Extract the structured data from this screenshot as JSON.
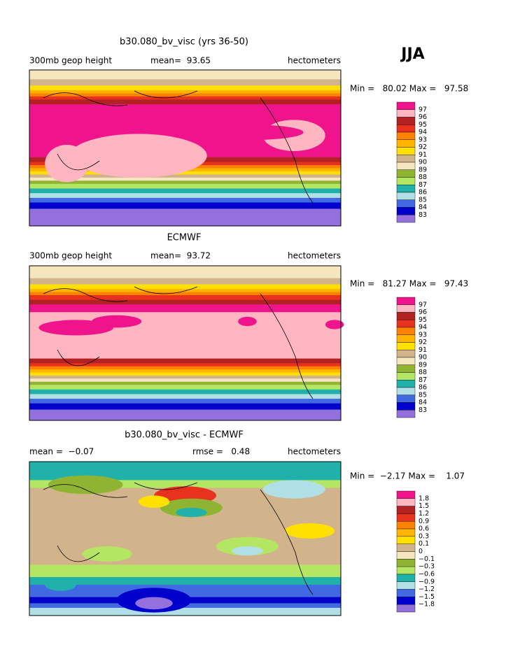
{
  "season": "JJA",
  "colors": [
    "#f0148c",
    "#ffb6c1",
    "#b22222",
    "#e8321e",
    "#ff8200",
    "#ffb400",
    "#ffe000",
    "#d2b48c",
    "#f5e6c0",
    "#8fb432",
    "#b4e664",
    "#20b2aa",
    "#b0e0e6",
    "#4169e1",
    "#0000cd",
    "#9370db"
  ],
  "panels": [
    {
      "title": "b30.080_bv_visc (yrs 36-50)",
      "left": "300mb geop height",
      "center": "mean=  93.65",
      "right": "hectometers",
      "minmax": "Min =   80.02 Max =   97.58",
      "levels": [
        "97",
        "96",
        "95",
        "94",
        "93",
        "92",
        "91",
        "90",
        "89",
        "88",
        "87",
        "86",
        "85",
        "84",
        "83"
      ]
    },
    {
      "title": "ECMWF",
      "left": "300mb geop height",
      "center": "mean=  93.72",
      "right": "hectometers",
      "minmax": "Min =   81.27 Max =   97.43",
      "levels": [
        "97",
        "96",
        "95",
        "94",
        "93",
        "92",
        "91",
        "90",
        "89",
        "88",
        "87",
        "86",
        "85",
        "84",
        "83"
      ]
    },
    {
      "title": "b30.080_bv_visc - ECMWF",
      "left": "mean =  −0.07",
      "center": "rmse =   0.48",
      "right": "hectometers",
      "minmax": "Min =  −2.17 Max =    1.07",
      "levels": [
        "1.8",
        "1.5",
        "1.2",
        "0.9",
        "0.6",
        "0.3",
        "0.1",
        "0",
        "−0.1",
        "−0.3",
        "−0.6",
        "−0.9",
        "−1.2",
        "−1.5",
        "−1.8"
      ]
    }
  ]
}
